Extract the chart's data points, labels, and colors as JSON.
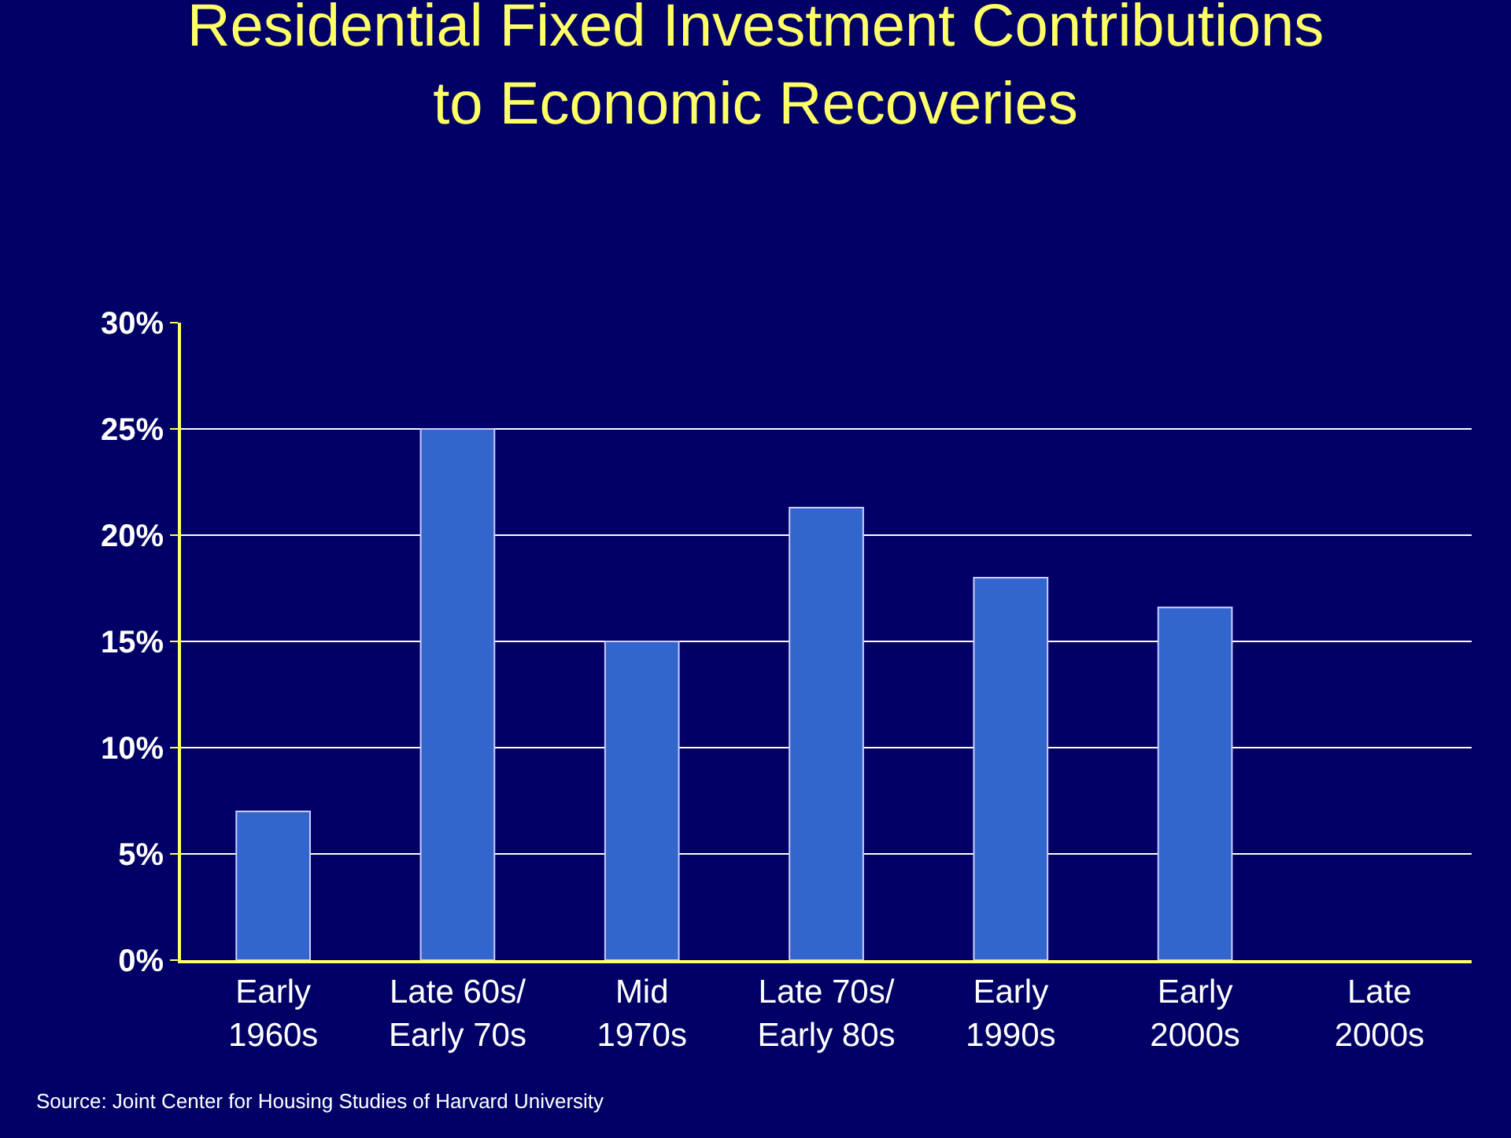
{
  "chart_data": {
    "type": "bar",
    "title": "Residential Fixed Investment Contributions\nto Economic Recoveries",
    "categories": [
      "Early\n1960s",
      "Late 60s/\nEarly 70s",
      "Mid\n1970s",
      "Late 70s/\nEarly 80s",
      "Early\n1990s",
      "Early\n2000s",
      "Late\n2000s"
    ],
    "values": [
      7,
      25,
      15,
      21.3,
      18,
      16.6,
      null
    ],
    "color": "#3366cc",
    "ylim": [
      0,
      30
    ],
    "yticks": [
      {
        "value": 0,
        "label": "0%"
      },
      {
        "value": 5,
        "label": "5%"
      },
      {
        "value": 10,
        "label": "10%"
      },
      {
        "value": 15,
        "label": "15%"
      },
      {
        "value": 20,
        "label": "20%"
      },
      {
        "value": 25,
        "label": "25%"
      },
      {
        "value": 30,
        "label": "30%"
      }
    ],
    "grid": "y",
    "annotations": [
      "Source: Joint Center for Housing Studies of Harvard University"
    ]
  }
}
